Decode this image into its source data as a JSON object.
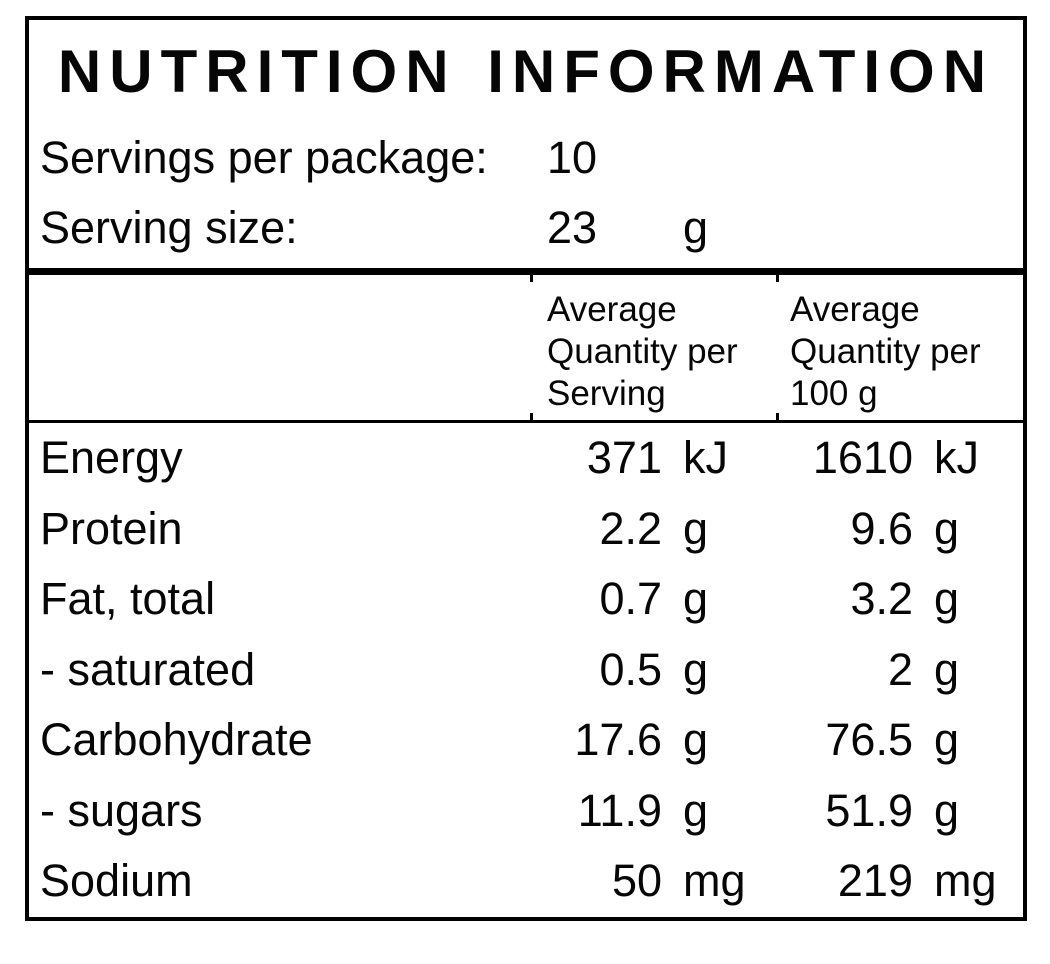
{
  "label": {
    "title": "NUTRITION INFORMATION",
    "meta": [
      {
        "name": "Servings per package:",
        "value": "10",
        "unit": ""
      },
      {
        "name": "Serving size:",
        "value": "23",
        "unit": "g"
      }
    ],
    "columns": {
      "serving": {
        "lines": [
          "Average",
          "Quantity per",
          "Serving"
        ]
      },
      "per100g": {
        "lines": [
          "Average",
          "Quantity per",
          "100 g"
        ]
      }
    },
    "rows": [
      {
        "nutrient": "Energy",
        "per_serving": {
          "value": "371",
          "unit": "kJ"
        },
        "per_100g": {
          "value": "1610",
          "unit": "kJ"
        }
      },
      {
        "nutrient": "Protein",
        "per_serving": {
          "value": "2.2",
          "unit": "g"
        },
        "per_100g": {
          "value": "9.6",
          "unit": "g"
        }
      },
      {
        "nutrient": "Fat, total",
        "per_serving": {
          "value": "0.7",
          "unit": "g"
        },
        "per_100g": {
          "value": "3.2",
          "unit": "g"
        }
      },
      {
        "nutrient": "- saturated",
        "per_serving": {
          "value": "0.5",
          "unit": "g"
        },
        "per_100g": {
          "value": "2",
          "unit": "g"
        }
      },
      {
        "nutrient": "Carbohydrate",
        "per_serving": {
          "value": "17.6",
          "unit": "g"
        },
        "per_100g": {
          "value": "76.5",
          "unit": "g"
        }
      },
      {
        "nutrient": "- sugars",
        "per_serving": {
          "value": "11.9",
          "unit": "g"
        },
        "per_100g": {
          "value": "51.9",
          "unit": "g"
        }
      },
      {
        "nutrient": "Sodium",
        "per_serving": {
          "value": "50",
          "unit": "mg"
        },
        "per_100g": {
          "value": "219",
          "unit": "mg"
        }
      }
    ],
    "colors": {
      "text": "#060606",
      "border": "#000000",
      "background": "#ffffff"
    }
  }
}
